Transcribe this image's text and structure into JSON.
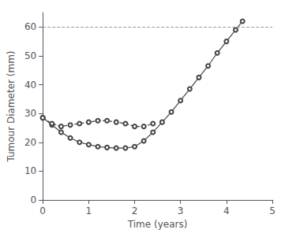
{
  "chart_data": {
    "type": "line",
    "xlabel": "Time (years)",
    "ylabel": "Tumour Diameter (mm)",
    "xlim": [
      0,
      5
    ],
    "ylim": [
      0,
      65
    ],
    "xticks": [
      0,
      1,
      2,
      3,
      4,
      5
    ],
    "yticks": [
      0,
      10,
      20,
      30,
      40,
      50,
      60
    ],
    "grid": false,
    "reference_lines": [
      {
        "y": 60,
        "color": "#999999",
        "line_style": "dashed"
      }
    ],
    "series": [
      {
        "color": "#444444",
        "line_style": "solid",
        "marker": "circle",
        "x": [
          0.0,
          0.2,
          0.4,
          0.6,
          0.8,
          1.0,
          1.2,
          1.4,
          1.6,
          1.8,
          2.0,
          2.2,
          2.4,
          2.6,
          2.8,
          3.0,
          3.2,
          3.4,
          3.6,
          3.8,
          4.0,
          4.2,
          4.35
        ],
        "values": [
          28.5,
          26.0,
          23.5,
          21.5,
          20.0,
          19.2,
          18.5,
          18.2,
          18.0,
          18.0,
          18.5,
          20.5,
          23.5,
          27.0,
          30.5,
          34.5,
          38.5,
          42.5,
          46.5,
          51.0,
          55.0,
          59.0,
          62.0
        ]
      },
      {
        "color": "#444444",
        "line_style": "dashed",
        "marker": "circle",
        "x": [
          0.0,
          0.2,
          0.4,
          0.6,
          0.8,
          1.0,
          1.2,
          1.4,
          1.6,
          1.8,
          2.0,
          2.2,
          2.4
        ],
        "values": [
          28.5,
          26.5,
          25.5,
          26.0,
          26.5,
          27.0,
          27.5,
          27.5,
          27.0,
          26.5,
          25.5,
          25.5,
          26.5
        ]
      }
    ]
  }
}
